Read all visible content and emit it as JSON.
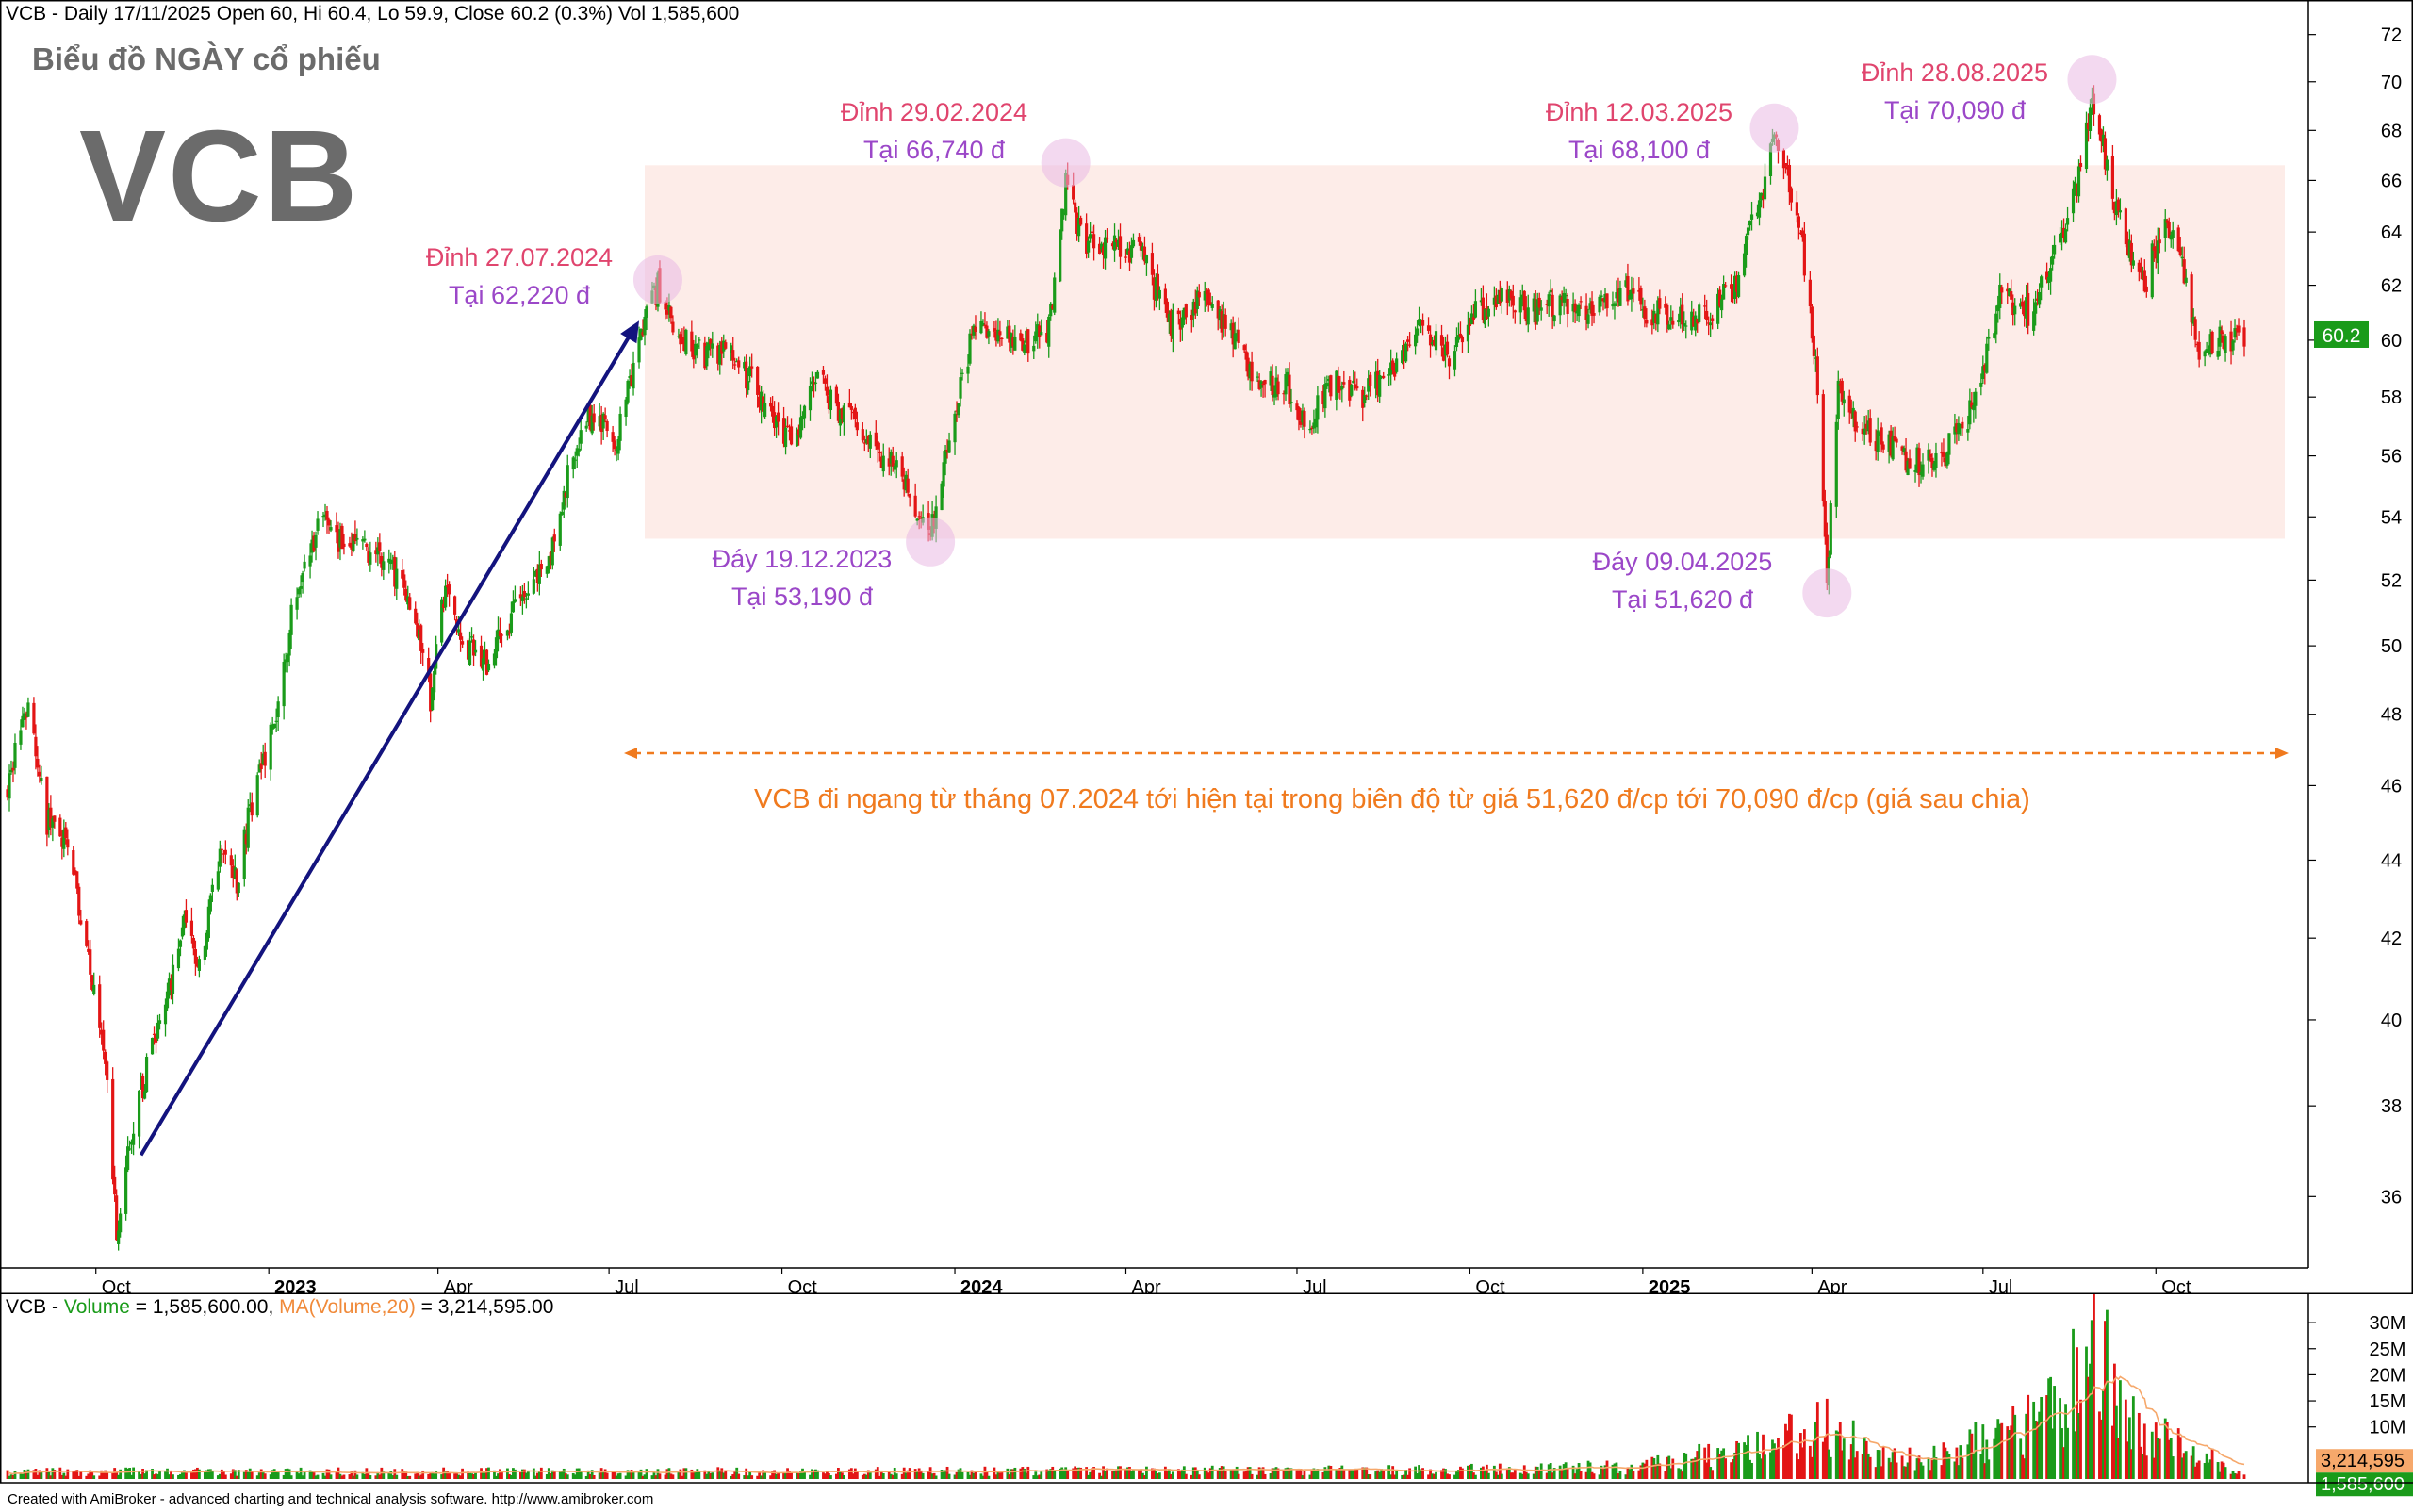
{
  "header": {
    "info": "VCB - Daily 17/11/2025 Open 60, Hi 60.4, Lo 59.9, Close 60.2 (0.3%) Vol 1,585,600"
  },
  "subtitle": "Biểu đồ NGÀY cổ phiếu",
  "ticker": "VCB",
  "annotations": [
    {
      "line1": "Đỉnh 27.07.2024",
      "line2": "Tại 62,220 đ",
      "kind": "peak"
    },
    {
      "line1": "Đỉnh 29.02.2024",
      "line2": "Tại 66,740 đ",
      "kind": "peak"
    },
    {
      "line1": "Đáy 19.12.2023",
      "line2": "Tại 53,190 đ",
      "kind": "trough"
    },
    {
      "line1": "Đỉnh 12.03.2025",
      "line2": "Tại 68,100 đ",
      "kind": "peak"
    },
    {
      "line1": "Đáy 09.04.2025",
      "line2": "Tại 51,620 đ",
      "kind": "trough"
    },
    {
      "line1": "Đỉnh 28.08.2025",
      "line2": "Tại 70,090 đ",
      "kind": "peak"
    }
  ],
  "range_note": "VCB đi ngang từ tháng 07.2024 tới hiện tại trong biên độ từ giá 51,620 đ/cp tới 70,090 đ/cp (giá sau chia)",
  "volume_header": {
    "prefix": "VCB - ",
    "vol_label": "Volume",
    "vol_value": " = 1,585,600.00, ",
    "ma_label": "MA(Volume,20)",
    "ma_value": " = 3,214,595.00"
  },
  "footer": "Created with AmiBroker - advanced charting and technical analysis software. http://www.amibroker.com",
  "colors": {
    "up": "#1a9b1a",
    "down": "#e31515",
    "range_band": "#fdece8",
    "trend_arrow": "#13137e",
    "peak_text": "#e0456e",
    "trough_text": "#9b47c8",
    "note": "#f07a1e",
    "last_price_bg": "#1a9b1a",
    "ma_bg": "#f6a86b"
  },
  "chart_data": [
    {
      "type": "candlestick",
      "title": "",
      "x_ticks": [
        "Oct",
        "2023",
        "Apr",
        "Jul",
        "Oct",
        "2024",
        "Apr",
        "Jul",
        "Oct",
        "2025",
        "Apr",
        "Jul",
        "Oct"
      ],
      "y_ticks": [
        36,
        38,
        40,
        42,
        44,
        46,
        48,
        50,
        52,
        54,
        56,
        58,
        60,
        62,
        64,
        66,
        68,
        70,
        72
      ],
      "y_scale": "log",
      "ylim": [
        34.5,
        73.5
      ],
      "last_price_label": "60.2",
      "range_band": [
        53.3,
        66.6
      ],
      "x_range": [
        "2022-08-15",
        "2025-11-17"
      ],
      "anchors": [
        [
          "2022-08-15",
          46.0
        ],
        [
          "2022-08-25",
          48.2
        ],
        [
          "2022-09-05",
          45.0
        ],
        [
          "2022-09-15",
          44.5
        ],
        [
          "2022-09-25",
          42.0
        ],
        [
          "2022-10-05",
          39.5
        ],
        [
          "2022-10-12",
          35.2
        ],
        [
          "2022-10-20",
          37.5
        ],
        [
          "2022-11-01",
          39.5
        ],
        [
          "2022-11-10",
          41.0
        ],
        [
          "2022-11-18",
          42.5
        ],
        [
          "2022-11-25",
          41.2
        ],
        [
          "2022-12-05",
          44.0
        ],
        [
          "2022-12-15",
          43.5
        ],
        [
          "2022-12-25",
          46.0
        ],
        [
          "2023-01-05",
          48.0
        ],
        [
          "2023-01-15",
          51.5
        ],
        [
          "2023-01-28",
          53.8
        ],
        [
          "2023-02-15",
          53.0
        ],
        [
          "2023-03-05",
          52.5
        ],
        [
          "2023-03-20",
          51.0
        ],
        [
          "2023-03-28",
          48.5
        ],
        [
          "2023-04-05",
          52.0
        ],
        [
          "2023-04-15",
          50.0
        ],
        [
          "2023-04-28",
          49.5
        ],
        [
          "2023-05-15",
          51.5
        ],
        [
          "2023-05-30",
          52.5
        ],
        [
          "2023-06-10",
          55.5
        ],
        [
          "2023-06-22",
          57.5
        ],
        [
          "2023-07-05",
          56.5
        ],
        [
          "2023-07-15",
          59.5
        ],
        [
          "2023-07-27",
          62.0
        ],
        [
          "2023-08-05",
          60.5
        ],
        [
          "2023-08-20",
          59.5
        ],
        [
          "2023-09-05",
          59.5
        ],
        [
          "2023-09-20",
          58.0
        ],
        [
          "2023-10-05",
          56.5
        ],
        [
          "2023-10-20",
          58.5
        ],
        [
          "2023-11-01",
          57.5
        ],
        [
          "2023-11-15",
          56.5
        ],
        [
          "2023-12-01",
          55.5
        ],
        [
          "2023-12-19",
          53.4
        ],
        [
          "2023-12-28",
          56.5
        ],
        [
          "2024-01-10",
          60.0
        ],
        [
          "2024-01-25",
          60.5
        ],
        [
          "2024-02-10",
          60.0
        ],
        [
          "2024-02-20",
          60.5
        ],
        [
          "2024-02-29",
          65.8
        ],
        [
          "2024-03-10",
          63.5
        ],
        [
          "2024-03-25",
          63.5
        ],
        [
          "2024-04-10",
          63.0
        ],
        [
          "2024-04-25",
          60.5
        ],
        [
          "2024-05-10",
          61.5
        ],
        [
          "2024-05-25",
          60.5
        ],
        [
          "2024-06-10",
          58.5
        ],
        [
          "2024-06-25",
          58.5
        ],
        [
          "2024-07-05",
          57.0
        ],
        [
          "2024-07-20",
          58.5
        ],
        [
          "2024-08-05",
          58.0
        ],
        [
          "2024-08-20",
          59.0
        ],
        [
          "2024-09-05",
          60.5
        ],
        [
          "2024-09-20",
          59.5
        ],
        [
          "2024-10-05",
          61.0
        ],
        [
          "2024-10-20",
          61.5
        ],
        [
          "2024-11-05",
          61.0
        ],
        [
          "2024-11-20",
          61.5
        ],
        [
          "2024-12-05",
          61.0
        ],
        [
          "2024-12-20",
          62.0
        ],
        [
          "2025-01-05",
          61.0
        ],
        [
          "2025-01-20",
          61.0
        ],
        [
          "2025-02-05",
          61.0
        ],
        [
          "2025-02-20",
          62.0
        ],
        [
          "2025-03-01",
          64.5
        ],
        [
          "2025-03-12",
          67.5
        ],
        [
          "2025-03-25",
          64.5
        ],
        [
          "2025-04-03",
          59.0
        ],
        [
          "2025-04-09",
          52.0
        ],
        [
          "2025-04-15",
          58.5
        ],
        [
          "2025-04-25",
          57.0
        ],
        [
          "2025-05-10",
          56.5
        ],
        [
          "2025-05-25",
          55.8
        ],
        [
          "2025-06-10",
          56.0
        ],
        [
          "2025-06-25",
          57.5
        ],
        [
          "2025-07-10",
          61.5
        ],
        [
          "2025-07-25",
          61.0
        ],
        [
          "2025-08-10",
          63.5
        ],
        [
          "2025-08-20",
          66.0
        ],
        [
          "2025-08-28",
          69.5
        ],
        [
          "2025-09-05",
          66.5
        ],
        [
          "2025-09-15",
          63.5
        ],
        [
          "2025-09-25",
          62.0
        ],
        [
          "2025-10-05",
          64.5
        ],
        [
          "2025-10-15",
          62.5
        ],
        [
          "2025-10-25",
          59.5
        ],
        [
          "2025-11-05",
          60.0
        ],
        [
          "2025-11-17",
          60.2
        ]
      ]
    },
    {
      "type": "bar",
      "title": "",
      "series": [
        {
          "name": "Volume",
          "values": []
        },
        {
          "name": "MA(Volume,20)",
          "values": []
        }
      ],
      "y_ticks": [
        "10M",
        "15M",
        "20M",
        "25M",
        "30M"
      ],
      "ylim": [
        0,
        34000000
      ],
      "ma_label": "3,214,595",
      "last_volume_label": "1,585,600",
      "x_range": [
        "2022-08-15",
        "2025-11-17"
      ],
      "anchors": [
        [
          "2022-08-15",
          1500000
        ],
        [
          "2023-01-01",
          1500000
        ],
        [
          "2023-07-01",
          1500000
        ],
        [
          "2024-01-01",
          1600000
        ],
        [
          "2024-09-01",
          1800000
        ],
        [
          "2025-01-01",
          2500000
        ],
        [
          "2025-03-10",
          7000000
        ],
        [
          "2025-04-09",
          12000000
        ],
        [
          "2025-05-01",
          5000000
        ],
        [
          "2025-06-01",
          4000000
        ],
        [
          "2025-07-15",
          10000000
        ],
        [
          "2025-08-10",
          14000000
        ],
        [
          "2025-08-28",
          30000000
        ],
        [
          "2025-09-15",
          12000000
        ],
        [
          "2025-10-10",
          7000000
        ],
        [
          "2025-11-17",
          1585600
        ]
      ]
    }
  ]
}
